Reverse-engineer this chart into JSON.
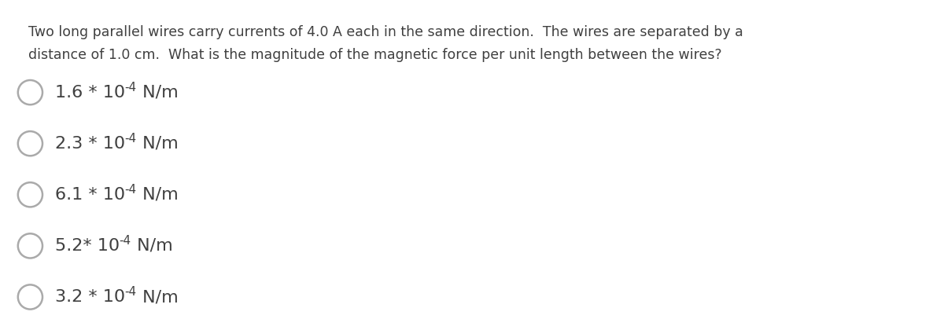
{
  "question_line1": "Two long parallel wires carry currents of 4.0 A each in the same direction.  The wires are separated by a",
  "question_line2": "distance of 1.0 cm.  What is the magnitude of the magnetic force per unit length between the wires?",
  "options_main": [
    "1.6 * 10",
    "2.3 * 10",
    "6.1 * 10",
    "5.2* 10",
    "3.2 * 10"
  ],
  "options_sup": [
    "-4",
    "-4",
    "-4",
    "-4",
    "-4"
  ],
  "options_suffix": [
    " N/m",
    " N/m",
    " N/m",
    " N/m",
    " N/m"
  ],
  "background_color": "#ffffff",
  "text_color": "#404040",
  "circle_color": "#aaaaaa",
  "question_fontsize": 12.5,
  "option_fontsize": 16,
  "superscript_fontsize": 11,
  "fig_width": 12.0,
  "fig_height": 4.2,
  "dpi": 100
}
